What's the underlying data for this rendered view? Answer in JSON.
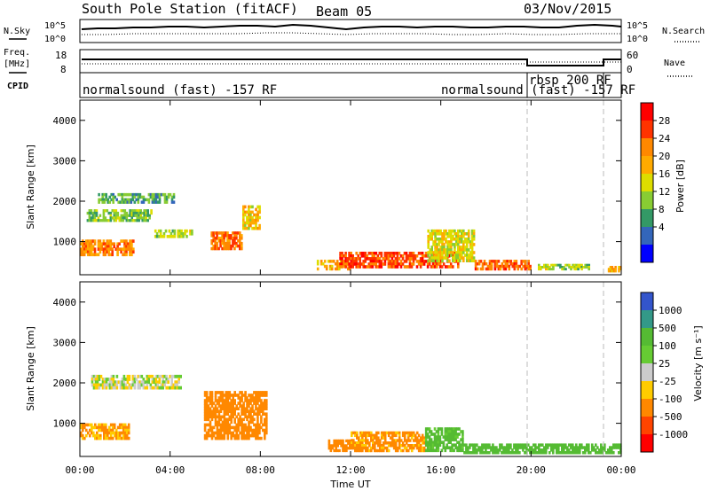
{
  "header": {
    "station": "South Pole Station (fitACF)",
    "beam": "Beam 05",
    "date": "03/Nov/2015"
  },
  "noise_panel": {
    "left_label": "N.Sky",
    "right_label": "N.Search",
    "y_ticks": [
      "10^5",
      "10^0"
    ]
  },
  "freq_panel": {
    "left_label_line1": "Freq.",
    "left_label_line2": "[MHz]",
    "right_label": "Nave",
    "left_ticks": [
      "18",
      "8"
    ],
    "right_ticks": [
      "60",
      "0"
    ]
  },
  "cpid_panel": {
    "label": "CPID",
    "segments": [
      {
        "text": "normalsound (fast) -157 RF"
      },
      {
        "text": "normalsound (fast) -157 RF"
      },
      {
        "text": "rbsp 200 RF"
      }
    ]
  },
  "power_panel": {
    "ylabel": "Slant Range [km]",
    "y_ticks": [
      "4000",
      "3000",
      "2000",
      "1000"
    ],
    "colorbar_label": "Power [dB]",
    "colorbar_ticks": [
      "28",
      "24",
      "20",
      "16",
      "12",
      "8",
      "4"
    ],
    "colorbar_colors": [
      "#ff0000",
      "#ff3300",
      "#ff8800",
      "#ffaa00",
      "#dddd00",
      "#88cc33",
      "#339966",
      "#3366bb",
      "#0000ff"
    ]
  },
  "velocity_panel": {
    "ylabel": "Slant Range [km]",
    "y_ticks": [
      "4000",
      "3000",
      "2000",
      "1000"
    ],
    "colorbar_label": "Velocity [m s⁻¹]",
    "colorbar_ticks": [
      "1000",
      "500",
      "100",
      "25",
      "-25",
      "-100",
      "-500",
      "-1000"
    ],
    "colorbar_colors": [
      "#3355cc",
      "#339988",
      "#55bb33",
      "#66cc33",
      "#cccccc",
      "#ffcc00",
      "#ff8800",
      "#ff4400",
      "#ff0000"
    ]
  },
  "x_axis": {
    "label": "Time UT",
    "ticks": [
      "00:00",
      "04:00",
      "08:00",
      "12:00",
      "16:00",
      "20:00",
      "00:00"
    ]
  },
  "chart_data": {
    "type": "heatmap",
    "x_range_hours": [
      0,
      24
    ],
    "y_range_km": [
      180,
      4500
    ],
    "cpid_change_hours": [
      20.0,
      23.6
    ],
    "power_regions": [
      {
        "t0": 0.0,
        "t1": 2.4,
        "r0": 650,
        "r1": 1050,
        "db": 22
      },
      {
        "t0": 0.3,
        "t1": 3.2,
        "r0": 1500,
        "r1": 1800,
        "db": 12
      },
      {
        "t0": 0.8,
        "t1": 4.2,
        "r0": 1950,
        "r1": 2200,
        "db": 10
      },
      {
        "t0": 3.3,
        "t1": 5.0,
        "r0": 1100,
        "r1": 1300,
        "db": 14
      },
      {
        "t0": 5.8,
        "t1": 7.2,
        "r0": 800,
        "r1": 1250,
        "db": 24
      },
      {
        "t0": 7.2,
        "t1": 8.0,
        "r0": 1300,
        "r1": 1900,
        "db": 18
      },
      {
        "t0": 10.5,
        "t1": 12.0,
        "r0": 300,
        "r1": 550,
        "db": 20
      },
      {
        "t0": 11.5,
        "t1": 16.8,
        "r0": 350,
        "r1": 750,
        "db": 26
      },
      {
        "t0": 15.4,
        "t1": 17.5,
        "r0": 500,
        "r1": 1300,
        "db": 16
      },
      {
        "t0": 17.5,
        "t1": 20.0,
        "r0": 300,
        "r1": 550,
        "db": 25
      },
      {
        "t0": 20.3,
        "t1": 22.6,
        "r0": 300,
        "r1": 450,
        "db": 14
      },
      {
        "t0": 23.4,
        "t1": 24.0,
        "r0": 250,
        "r1": 400,
        "db": 20
      }
    ],
    "velocity_regions": [
      {
        "t0": 0.0,
        "t1": 2.2,
        "r0": 600,
        "r1": 1000,
        "v": -120
      },
      {
        "t0": 0.5,
        "t1": 4.5,
        "r0": 1850,
        "r1": 2200,
        "v": 0
      },
      {
        "t0": 5.5,
        "t1": 8.3,
        "r0": 600,
        "r1": 1800,
        "v": -300
      },
      {
        "t0": 11.0,
        "t1": 12.0,
        "r0": 300,
        "r1": 600,
        "v": -200
      },
      {
        "t0": 12.0,
        "t1": 15.3,
        "r0": 300,
        "r1": 800,
        "v": -150
      },
      {
        "t0": 15.3,
        "t1": 17.0,
        "r0": 300,
        "r1": 900,
        "v": 150
      },
      {
        "t0": 17.0,
        "t1": 24.0,
        "r0": 250,
        "r1": 500,
        "v": 180
      }
    ]
  }
}
